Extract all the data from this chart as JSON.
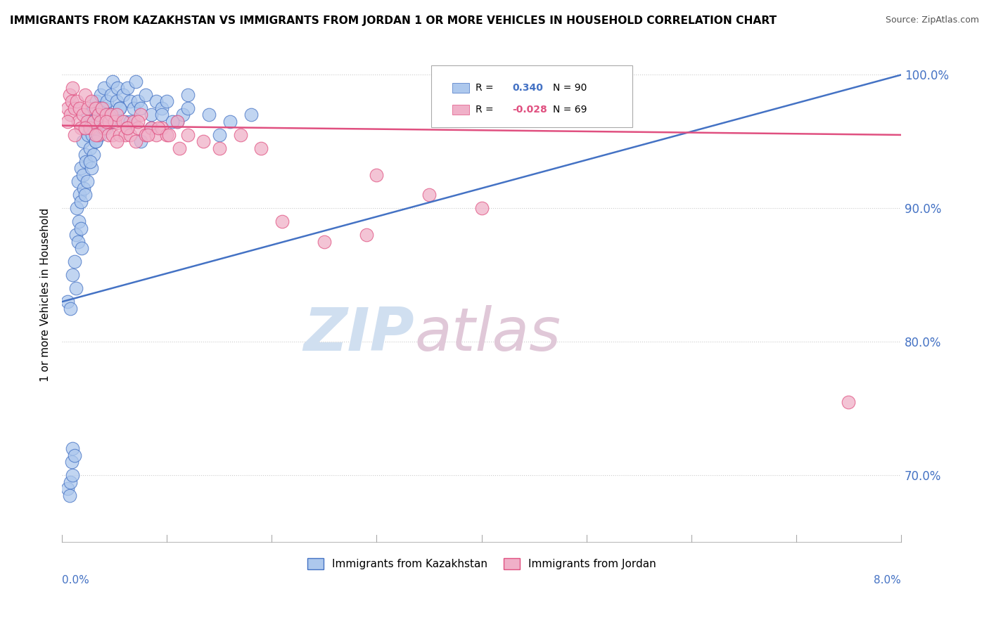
{
  "title": "IMMIGRANTS FROM KAZAKHSTAN VS IMMIGRANTS FROM JORDAN 1 OR MORE VEHICLES IN HOUSEHOLD CORRELATION CHART",
  "source": "Source: ZipAtlas.com",
  "ylabel_label": "1 or more Vehicles in Household",
  "legend_kaz": "Immigrants from Kazakhstan",
  "legend_jor": "Immigrants from Jordan",
  "R_kaz": 0.34,
  "N_kaz": 90,
  "R_jor": -0.028,
  "N_jor": 69,
  "color_kaz": "#adc8ed",
  "color_jor": "#f0b0c8",
  "line_color_kaz": "#4472c4",
  "line_color_jor": "#e05080",
  "watermark_color": "#d0dff0",
  "watermark_color2": "#e0c8d8",
  "grid_color": "#cccccc",
  "xmin": 0.0,
  "xmax": 8.0,
  "ymin": 65.0,
  "ymax": 102.0,
  "ytick_vals": [
    70.0,
    80.0,
    90.0,
    100.0
  ],
  "ytick_labels": [
    "70.0%",
    "80.0%",
    "90.0%",
    "100.0%"
  ],
  "kaz_x": [
    0.05,
    0.07,
    0.08,
    0.09,
    0.1,
    0.1,
    0.1,
    0.12,
    0.12,
    0.13,
    0.14,
    0.15,
    0.15,
    0.16,
    0.17,
    0.18,
    0.18,
    0.19,
    0.2,
    0.2,
    0.21,
    0.22,
    0.23,
    0.24,
    0.25,
    0.25,
    0.26,
    0.27,
    0.28,
    0.28,
    0.29,
    0.3,
    0.3,
    0.31,
    0.32,
    0.33,
    0.34,
    0.35,
    0.36,
    0.37,
    0.38,
    0.39,
    0.4,
    0.41,
    0.42,
    0.43,
    0.45,
    0.46,
    0.47,
    0.48,
    0.5,
    0.52,
    0.53,
    0.55,
    0.58,
    0.6,
    0.62,
    0.65,
    0.68,
    0.7,
    0.72,
    0.75,
    0.8,
    0.85,
    0.9,
    0.95,
    1.0,
    1.1,
    1.15,
    1.2,
    1.4,
    1.5,
    1.6,
    1.8,
    0.05,
    0.08,
    0.13,
    0.18,
    0.22,
    0.27,
    0.32,
    0.38,
    0.45,
    0.55,
    0.65,
    0.75,
    0.85,
    0.95,
    1.05,
    1.2
  ],
  "kaz_y": [
    69.0,
    68.5,
    69.5,
    71.0,
    70.0,
    72.0,
    85.0,
    71.5,
    86.0,
    88.0,
    90.0,
    87.5,
    92.0,
    89.0,
    91.0,
    90.5,
    93.0,
    87.0,
    92.5,
    95.0,
    91.5,
    94.0,
    93.5,
    92.0,
    95.5,
    97.0,
    96.0,
    94.5,
    93.0,
    96.5,
    95.5,
    97.5,
    94.0,
    96.0,
    95.0,
    98.0,
    96.5,
    97.0,
    95.5,
    98.5,
    97.5,
    96.0,
    99.0,
    97.5,
    96.0,
    98.0,
    97.0,
    96.5,
    98.5,
    99.5,
    97.0,
    98.0,
    99.0,
    97.5,
    98.5,
    96.5,
    99.0,
    98.0,
    97.5,
    99.5,
    98.0,
    97.5,
    98.5,
    97.0,
    98.0,
    97.5,
    98.0,
    96.5,
    97.0,
    98.5,
    97.0,
    95.5,
    96.5,
    97.0,
    83.0,
    82.5,
    84.0,
    88.5,
    91.0,
    93.5,
    95.0,
    96.0,
    97.0,
    97.5,
    96.5,
    95.0,
    96.0,
    97.0,
    96.5,
    97.5
  ],
  "jor_x": [
    0.05,
    0.07,
    0.08,
    0.09,
    0.1,
    0.12,
    0.14,
    0.15,
    0.17,
    0.18,
    0.2,
    0.22,
    0.24,
    0.25,
    0.27,
    0.28,
    0.3,
    0.32,
    0.34,
    0.35,
    0.37,
    0.38,
    0.4,
    0.42,
    0.44,
    0.45,
    0.47,
    0.48,
    0.5,
    0.52,
    0.55,
    0.58,
    0.6,
    0.62,
    0.65,
    0.68,
    0.7,
    0.72,
    0.75,
    0.8,
    0.85,
    0.9,
    0.95,
    1.0,
    1.1,
    1.2,
    1.35,
    1.5,
    1.7,
    1.9,
    2.1,
    2.5,
    2.9,
    3.0,
    3.5,
    4.0,
    0.05,
    0.12,
    0.22,
    0.32,
    0.42,
    0.52,
    0.62,
    0.72,
    0.82,
    0.92,
    1.02,
    1.12,
    7.5
  ],
  "jor_y": [
    97.5,
    98.5,
    97.0,
    98.0,
    99.0,
    97.5,
    98.0,
    96.5,
    97.5,
    96.0,
    97.0,
    98.5,
    96.5,
    97.5,
    96.0,
    98.0,
    96.5,
    97.5,
    95.5,
    97.0,
    96.5,
    97.5,
    96.0,
    97.0,
    95.5,
    96.5,
    97.0,
    95.5,
    96.5,
    97.0,
    95.5,
    96.5,
    95.5,
    96.0,
    95.5,
    96.5,
    95.0,
    96.0,
    97.0,
    95.5,
    96.0,
    95.5,
    96.0,
    95.5,
    96.5,
    95.5,
    95.0,
    94.5,
    95.5,
    94.5,
    89.0,
    87.5,
    88.0,
    92.5,
    91.0,
    90.0,
    96.5,
    95.5,
    96.0,
    95.5,
    96.5,
    95.0,
    96.0,
    96.5,
    95.5,
    96.0,
    95.5,
    94.5,
    75.5
  ],
  "kaz_trendline_y0": 83.0,
  "kaz_trendline_y1": 100.0,
  "jor_trendline_y0": 96.2,
  "jor_trendline_y1": 95.5
}
